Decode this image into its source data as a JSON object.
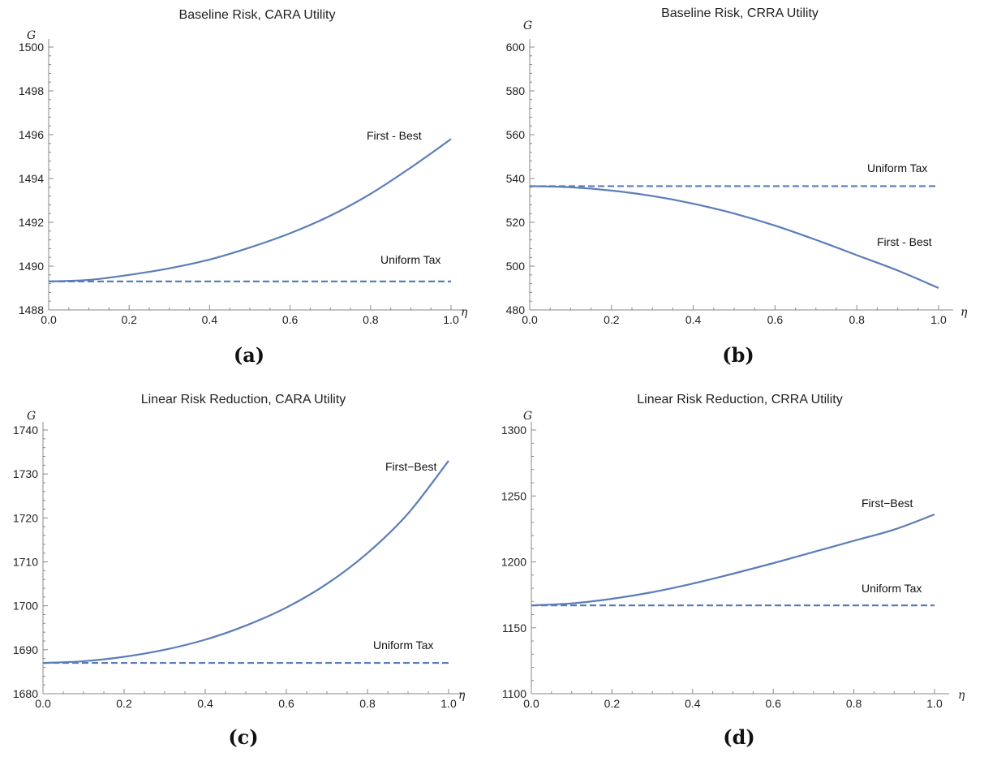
{
  "chart_data": [
    {
      "type": "line",
      "title": "Baseline Risk,  CARA Utility",
      "caption": "(a)",
      "xlabel": "η",
      "ylabel": "G",
      "xlim": [
        0,
        1
      ],
      "ylim": [
        1488,
        1500
      ],
      "xticks": [
        "0.0",
        "0.2",
        "0.4",
        "0.6",
        "0.8",
        "1.0"
      ],
      "yticks": [
        "1488",
        "1490",
        "1492",
        "1494",
        "1496",
        "1498",
        "1500"
      ],
      "series": [
        {
          "name": "First - Best",
          "style": "solid",
          "x": [
            0.0,
            0.1,
            0.2,
            0.3,
            0.4,
            0.5,
            0.6,
            0.7,
            0.8,
            0.9,
            1.0
          ],
          "values": [
            1489.3,
            1489.37,
            1489.6,
            1489.9,
            1490.3,
            1490.85,
            1491.5,
            1492.3,
            1493.3,
            1494.5,
            1495.8
          ]
        },
        {
          "name": "Uniform Tax",
          "style": "dashed",
          "x": [
            0.0,
            1.0
          ],
          "values": [
            1489.3,
            1489.3
          ]
        }
      ]
    },
    {
      "type": "line",
      "title": "Baseline Risk,  CRRA Utility",
      "caption": "(b)",
      "xlabel": "η",
      "ylabel": "G",
      "xlim": [
        0,
        1
      ],
      "ylim": [
        480,
        600
      ],
      "xticks": [
        "0.0",
        "0.2",
        "0.4",
        "0.6",
        "0.8",
        "1.0"
      ],
      "yticks": [
        "480",
        "500",
        "520",
        "540",
        "560",
        "580",
        "600"
      ],
      "series": [
        {
          "name": "First - Best",
          "style": "solid",
          "x": [
            0.0,
            0.1,
            0.2,
            0.3,
            0.4,
            0.5,
            0.6,
            0.7,
            0.8,
            0.9,
            1.0
          ],
          "values": [
            536.5,
            536.0,
            534.5,
            532.0,
            528.5,
            524.0,
            518.5,
            512.0,
            505.0,
            498.0,
            490.0
          ]
        },
        {
          "name": "Uniform Tax",
          "style": "dashed",
          "x": [
            0.0,
            1.0
          ],
          "values": [
            536.5,
            536.5
          ]
        }
      ]
    },
    {
      "type": "line",
      "title": "Linear Risk Reduction,  CARA Utility",
      "caption": "(c)",
      "xlabel": "η",
      "ylabel": "G",
      "xlim": [
        0,
        1
      ],
      "ylim": [
        1680,
        1740
      ],
      "xticks": [
        "0.0",
        "0.2",
        "0.4",
        "0.6",
        "0.8",
        "1.0"
      ],
      "yticks": [
        "1680",
        "1690",
        "1700",
        "1710",
        "1720",
        "1730",
        "1740"
      ],
      "series": [
        {
          "name": "First−Best",
          "style": "solid",
          "x": [
            0.0,
            0.1,
            0.2,
            0.3,
            0.4,
            0.5,
            0.6,
            0.7,
            0.8,
            0.9,
            1.0
          ],
          "values": [
            1687.0,
            1687.4,
            1688.4,
            1690.0,
            1692.3,
            1695.5,
            1699.6,
            1705.0,
            1712.0,
            1721.0,
            1733.0
          ]
        },
        {
          "name": "Uniform Tax",
          "style": "dashed",
          "x": [
            0.0,
            1.0
          ],
          "values": [
            1687.0,
            1687.0
          ]
        }
      ]
    },
    {
      "type": "line",
      "title": "Linear Risk Reduction,  CRRA Utility",
      "caption": "(d)",
      "xlabel": "η",
      "ylabel": "G",
      "xlim": [
        0,
        1
      ],
      "ylim": [
        1100,
        1300
      ],
      "xticks": [
        "0.0",
        "0.2",
        "0.4",
        "0.6",
        "0.8",
        "1.0"
      ],
      "yticks": [
        "1100",
        "1150",
        "1200",
        "1250",
        "1300"
      ],
      "series": [
        {
          "name": "First−Best",
          "style": "solid",
          "x": [
            0.0,
            0.1,
            0.2,
            0.3,
            0.4,
            0.5,
            0.6,
            0.7,
            0.8,
            0.9,
            1.0
          ],
          "values": [
            1167.0,
            1168.5,
            1172.0,
            1177.0,
            1183.5,
            1191.0,
            1199.0,
            1207.5,
            1216.0,
            1224.5,
            1236.0
          ]
        },
        {
          "name": "Uniform Tax",
          "style": "dashed",
          "x": [
            0.0,
            1.0
          ],
          "values": [
            1167.0,
            1167.0
          ]
        }
      ]
    }
  ],
  "colors": {
    "series": "#5b7db8",
    "axis": "#888888"
  }
}
